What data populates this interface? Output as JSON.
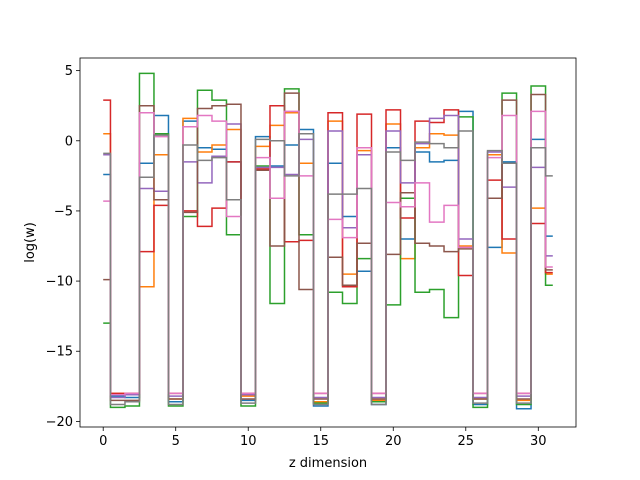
{
  "chart_data": {
    "type": "line",
    "drawstyle": "steps-mid",
    "xlabel": "z dimension",
    "ylabel": "log(w)",
    "xlim": [
      -1.6,
      32.6
    ],
    "ylim": [
      -20.4,
      5.9
    ],
    "xticks": [
      0,
      5,
      10,
      15,
      20,
      25,
      30
    ],
    "yticks": [
      -20,
      -15,
      -10,
      -5,
      0,
      5
    ],
    "x": [
      0,
      1,
      2,
      3,
      4,
      5,
      6,
      7,
      8,
      9,
      10,
      11,
      12,
      13,
      14,
      15,
      16,
      17,
      18,
      19,
      20,
      21,
      22,
      23,
      24,
      25,
      26,
      27,
      28,
      29,
      30,
      31
    ],
    "series": [
      {
        "color": "#1f77b4",
        "values": [
          -2.4,
          -18.2,
          -18.3,
          -1.6,
          1.8,
          -18.6,
          1.4,
          -0.5,
          -0.6,
          -1.5,
          -18.5,
          0.3,
          -1.8,
          -0.3,
          0.8,
          -18.9,
          -1.6,
          -5.4,
          -9.3,
          -18.8,
          -0.5,
          -7.0,
          -0.8,
          -1.5,
          -1.4,
          2.1,
          -18.8,
          -7.6,
          -1.5,
          -19.1,
          0.1,
          -6.8
        ]
      },
      {
        "color": "#ff7f0e",
        "values": [
          0.5,
          -18.0,
          -18.0,
          -10.4,
          -1.0,
          -18.4,
          1.6,
          -0.8,
          -0.3,
          0.8,
          -18.2,
          -0.4,
          1.1,
          2.0,
          -1.6,
          -18.6,
          1.4,
          -9.5,
          -0.7,
          -18.5,
          1.2,
          -8.4,
          -0.5,
          0.5,
          0.4,
          -7.5,
          -18.4,
          -1.0,
          -8.0,
          -18.5,
          -4.8,
          -9.5
        ]
      },
      {
        "color": "#2ca02c",
        "values": [
          -13.0,
          -19.0,
          -18.9,
          4.8,
          0.5,
          -18.9,
          -5.4,
          3.6,
          2.9,
          -6.7,
          -18.9,
          -1.8,
          -11.6,
          3.7,
          -6.7,
          -18.7,
          -10.8,
          -11.6,
          -8.4,
          -18.6,
          -11.7,
          -4.1,
          -10.8,
          -10.6,
          -12.6,
          1.7,
          -19.0,
          -4.1,
          3.4,
          -18.8,
          3.9,
          -10.3
        ]
      },
      {
        "color": "#d62728",
        "values": [
          2.9,
          -18.0,
          -18.0,
          -7.9,
          -4.6,
          -18.0,
          -5.0,
          -6.1,
          -4.8,
          -1.5,
          -18.0,
          -2.0,
          2.5,
          -7.2,
          -7.1,
          -18.0,
          2.0,
          -10.4,
          1.9,
          -18.0,
          2.2,
          -5.5,
          1.4,
          1.3,
          2.2,
          -9.6,
          -18.0,
          -2.8,
          -7.0,
          -18.0,
          -5.9,
          -9.4
        ]
      },
      {
        "color": "#9467bd",
        "values": [
          -1.0,
          -18.3,
          -18.1,
          -3.4,
          -3.6,
          -18.2,
          -1.5,
          -3.0,
          -1.1,
          1.2,
          -18.1,
          -1.9,
          -1.9,
          -2.4,
          0.1,
          -18.3,
          0.7,
          -6.2,
          -1.0,
          -18.3,
          0.7,
          -3.0,
          -0.2,
          1.6,
          1.8,
          -7.0,
          -18.3,
          -0.8,
          -3.3,
          -18.2,
          -1.9,
          -8.2
        ]
      },
      {
        "color": "#8c564b",
        "values": [
          -9.9,
          -18.5,
          -18.5,
          2.5,
          -4.2,
          -18.4,
          -5.1,
          2.3,
          2.5,
          2.6,
          -18.4,
          -2.1,
          -7.5,
          3.4,
          -10.6,
          -18.4,
          -8.3,
          -10.3,
          -7.3,
          -18.4,
          -8.1,
          -3.7,
          -7.3,
          -7.5,
          -7.9,
          -7.7,
          -18.4,
          -4.1,
          2.9,
          -18.4,
          3.3,
          -9.2
        ]
      },
      {
        "color": "#e377c2",
        "values": [
          -4.3,
          -18.1,
          -18.0,
          2.0,
          0.3,
          -18.0,
          1.0,
          1.8,
          1.4,
          -5.4,
          -18.0,
          -1.2,
          -4.1,
          2.1,
          -2.5,
          -18.0,
          -5.6,
          -6.9,
          -0.5,
          -18.0,
          -4.4,
          -4.7,
          -3.0,
          -5.8,
          -4.6,
          -7.6,
          -18.0,
          -1.2,
          1.8,
          -18.0,
          2.1,
          -9.0
        ]
      },
      {
        "color": "#7f7f7f",
        "values": [
          -0.9,
          -18.8,
          -18.6,
          -2.6,
          0.4,
          -18.8,
          -0.3,
          -1.4,
          -1.2,
          -4.2,
          -18.7,
          0.1,
          0.0,
          -2.5,
          0.5,
          -18.8,
          -3.8,
          -3.8,
          -3.4,
          -18.8,
          -0.8,
          -1.4,
          -0.1,
          -0.2,
          -0.5,
          0.7,
          -18.7,
          -0.7,
          -1.6,
          -18.7,
          -0.5,
          -2.5
        ]
      }
    ]
  }
}
